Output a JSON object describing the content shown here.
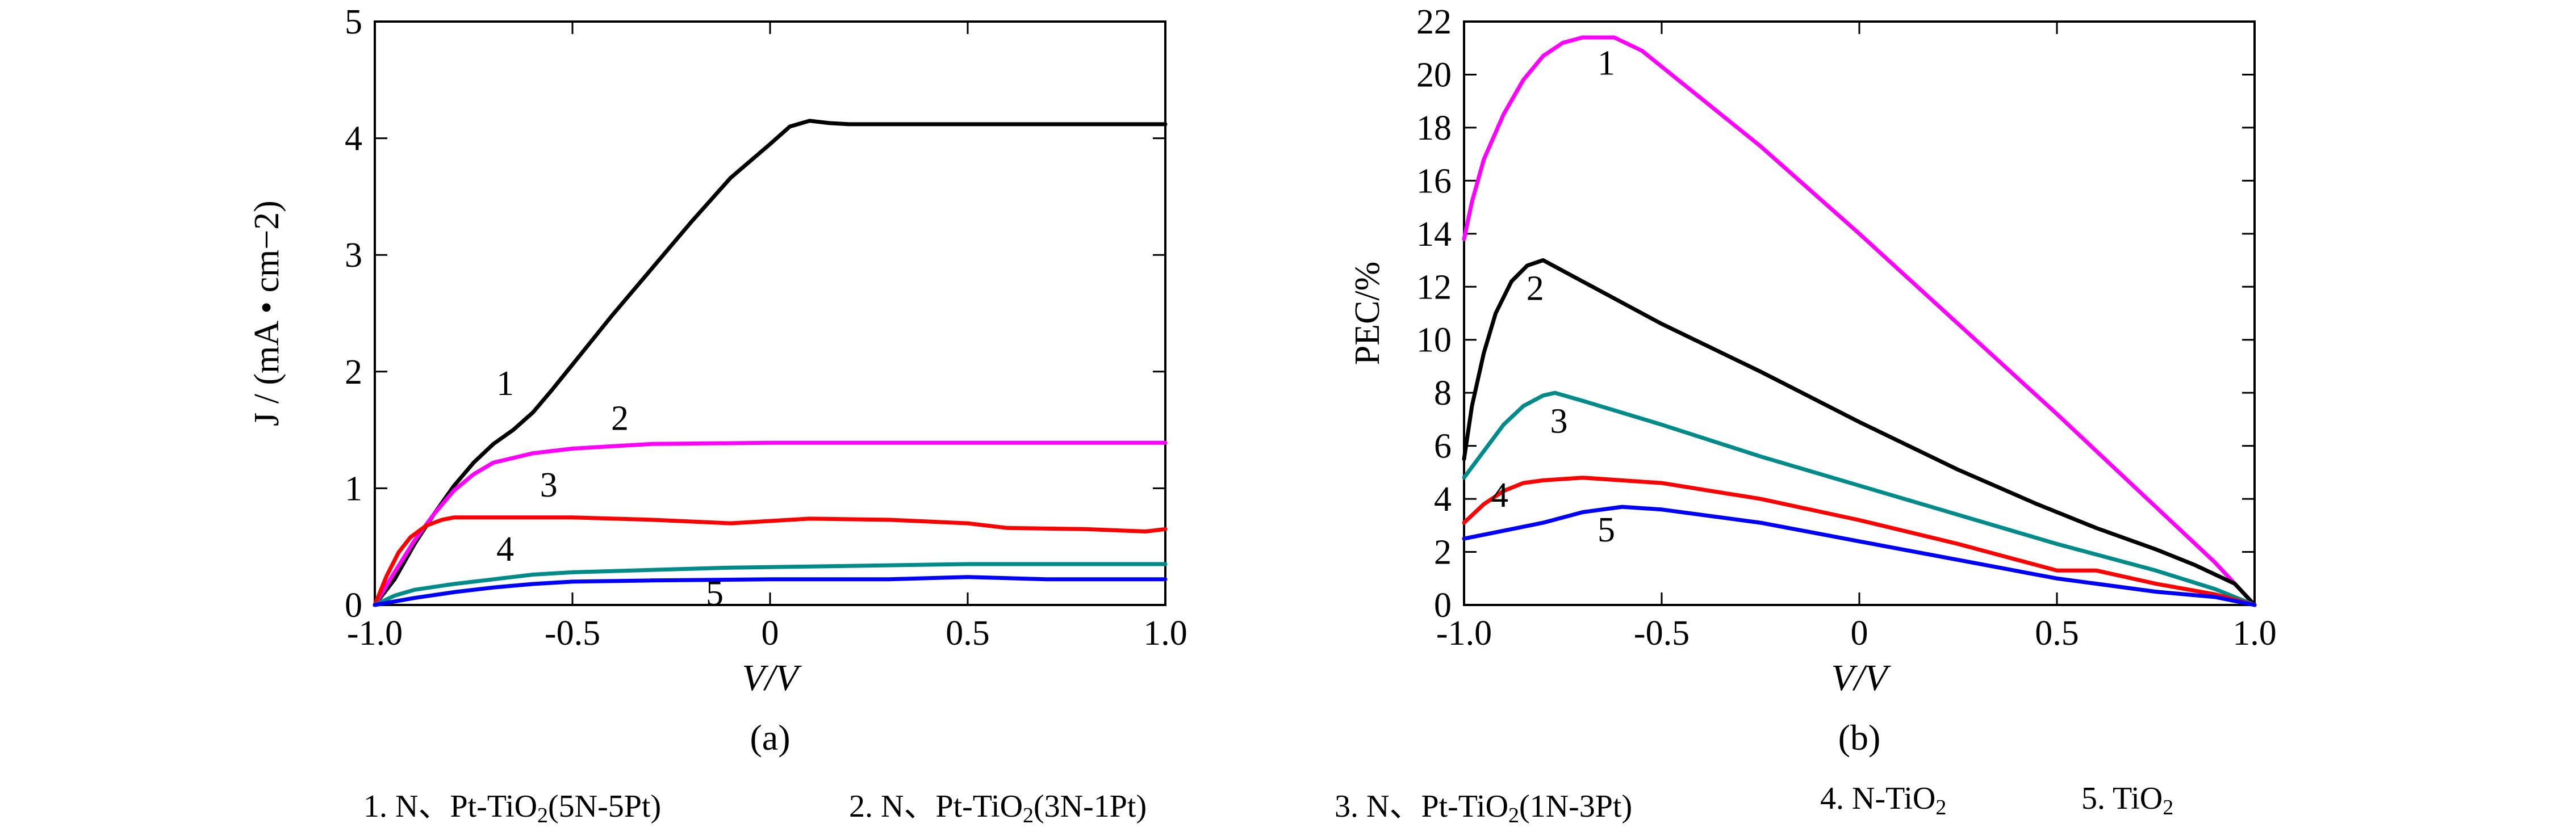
{
  "chart_data": [
    {
      "id": "a",
      "type": "line",
      "caption": "(a)",
      "xlabel": "V/V",
      "ylabel": "J / (mA • cm−2)",
      "xlim": [
        -1.0,
        1.0
      ],
      "ylim": [
        0,
        5
      ],
      "xticks": [
        -1.0,
        -0.5,
        0,
        0.5,
        1.0
      ],
      "xtick_labels": [
        "-1.0",
        "-0.5",
        "0",
        "0.5",
        "1.0"
      ],
      "yticks": [
        0,
        1,
        2,
        3,
        4,
        5
      ],
      "ytick_labels": [
        "0",
        "1",
        "2",
        "3",
        "4",
        "5"
      ],
      "series": [
        {
          "name": "1",
          "color": "#000000",
          "points": [
            [
              -1.0,
              0.0
            ],
            [
              -0.95,
              0.22
            ],
            [
              -0.9,
              0.52
            ],
            [
              -0.85,
              0.78
            ],
            [
              -0.8,
              1.02
            ],
            [
              -0.75,
              1.22
            ],
            [
              -0.7,
              1.38
            ],
            [
              -0.65,
              1.5
            ],
            [
              -0.6,
              1.65
            ],
            [
              -0.55,
              1.85
            ],
            [
              -0.5,
              2.06
            ],
            [
              -0.4,
              2.48
            ],
            [
              -0.3,
              2.88
            ],
            [
              -0.2,
              3.28
            ],
            [
              -0.1,
              3.66
            ],
            [
              0.0,
              3.95
            ],
            [
              0.05,
              4.1
            ],
            [
              0.1,
              4.15
            ],
            [
              0.15,
              4.13
            ],
            [
              0.2,
              4.12
            ],
            [
              0.5,
              4.12
            ],
            [
              1.0,
              4.12
            ]
          ]
        },
        {
          "name": "2",
          "color": "#ff00ff",
          "points": [
            [
              -1.0,
              0.0
            ],
            [
              -0.95,
              0.28
            ],
            [
              -0.9,
              0.55
            ],
            [
              -0.85,
              0.78
            ],
            [
              -0.8,
              0.98
            ],
            [
              -0.75,
              1.12
            ],
            [
              -0.7,
              1.22
            ],
            [
              -0.6,
              1.3
            ],
            [
              -0.5,
              1.34
            ],
            [
              -0.4,
              1.36
            ],
            [
              -0.3,
              1.38
            ],
            [
              0.0,
              1.39
            ],
            [
              0.5,
              1.39
            ],
            [
              1.0,
              1.39
            ]
          ]
        },
        {
          "name": "3",
          "color": "#ff0000",
          "points": [
            [
              -1.0,
              0.0
            ],
            [
              -0.97,
              0.25
            ],
            [
              -0.94,
              0.45
            ],
            [
              -0.91,
              0.58
            ],
            [
              -0.87,
              0.68
            ],
            [
              -0.83,
              0.73
            ],
            [
              -0.8,
              0.75
            ],
            [
              -0.5,
              0.75
            ],
            [
              -0.3,
              0.73
            ],
            [
              -0.1,
              0.7
            ],
            [
              0.0,
              0.72
            ],
            [
              0.1,
              0.74
            ],
            [
              0.3,
              0.73
            ],
            [
              0.5,
              0.7
            ],
            [
              0.6,
              0.66
            ],
            [
              0.8,
              0.65
            ],
            [
              0.95,
              0.63
            ],
            [
              1.0,
              0.65
            ]
          ]
        },
        {
          "name": "4",
          "color": "#008b8b",
          "points": [
            [
              -1.0,
              0.0
            ],
            [
              -0.95,
              0.08
            ],
            [
              -0.9,
              0.13
            ],
            [
              -0.8,
              0.18
            ],
            [
              -0.7,
              0.22
            ],
            [
              -0.6,
              0.26
            ],
            [
              -0.5,
              0.28
            ],
            [
              -0.3,
              0.3
            ],
            [
              -0.1,
              0.32
            ],
            [
              0.1,
              0.33
            ],
            [
              0.3,
              0.34
            ],
            [
              0.5,
              0.35
            ],
            [
              1.0,
              0.35
            ]
          ]
        },
        {
          "name": "5",
          "color": "#0000ff",
          "points": [
            [
              -1.0,
              0.0
            ],
            [
              -0.9,
              0.06
            ],
            [
              -0.8,
              0.11
            ],
            [
              -0.7,
              0.15
            ],
            [
              -0.6,
              0.18
            ],
            [
              -0.5,
              0.2
            ],
            [
              -0.3,
              0.21
            ],
            [
              0.0,
              0.22
            ],
            [
              0.3,
              0.22
            ],
            [
              0.5,
              0.24
            ],
            [
              0.7,
              0.22
            ],
            [
              1.0,
              0.22
            ]
          ]
        }
      ],
      "annotations": [
        {
          "text": "1",
          "x": -0.67,
          "y": 1.8
        },
        {
          "text": "2",
          "x": -0.38,
          "y": 1.5
        },
        {
          "text": "3",
          "x": -0.56,
          "y": 0.93
        },
        {
          "text": "4",
          "x": -0.67,
          "y": 0.38
        },
        {
          "text": "5",
          "x": -0.14,
          "y": 0.0
        }
      ]
    },
    {
      "id": "b",
      "type": "line",
      "caption": "(b)",
      "xlabel": "V/V",
      "ylabel": "PEC/%",
      "xlim": [
        -1.0,
        1.0
      ],
      "ylim": [
        0,
        22
      ],
      "xticks": [
        -1.0,
        -0.5,
        0,
        0.5,
        1.0
      ],
      "xtick_labels": [
        "-1.0",
        "-0.5",
        "0",
        "0.5",
        "1.0"
      ],
      "yticks": [
        0,
        2,
        4,
        6,
        8,
        10,
        12,
        14,
        16,
        18,
        20,
        22
      ],
      "ytick_labels": [
        "0",
        "2",
        "4",
        "6",
        "8",
        "10",
        "12",
        "14",
        "16",
        "18",
        "20",
        "22"
      ],
      "series": [
        {
          "name": "1",
          "color": "#ff00ff",
          "points": [
            [
              -1.0,
              13.8
            ],
            [
              -0.98,
              15.2
            ],
            [
              -0.95,
              16.8
            ],
            [
              -0.9,
              18.5
            ],
            [
              -0.85,
              19.8
            ],
            [
              -0.8,
              20.7
            ],
            [
              -0.75,
              21.2
            ],
            [
              -0.7,
              21.4
            ],
            [
              -0.62,
              21.4
            ],
            [
              -0.55,
              20.9
            ],
            [
              -0.5,
              20.3
            ],
            [
              -0.25,
              17.3
            ],
            [
              0.0,
              14.0
            ],
            [
              0.25,
              10.6
            ],
            [
              0.5,
              7.2
            ],
            [
              0.75,
              3.7
            ],
            [
              0.9,
              1.6
            ],
            [
              1.0,
              0.0
            ]
          ]
        },
        {
          "name": "2",
          "color": "#000000",
          "points": [
            [
              -1.0,
              5.5
            ],
            [
              -0.98,
              7.5
            ],
            [
              -0.95,
              9.5
            ],
            [
              -0.92,
              11.0
            ],
            [
              -0.88,
              12.2
            ],
            [
              -0.84,
              12.8
            ],
            [
              -0.8,
              13.0
            ],
            [
              -0.7,
              12.2
            ],
            [
              -0.5,
              10.6
            ],
            [
              -0.25,
              8.8
            ],
            [
              0.0,
              6.9
            ],
            [
              0.25,
              5.1
            ],
            [
              0.45,
              3.8
            ],
            [
              0.6,
              2.9
            ],
            [
              0.75,
              2.1
            ],
            [
              0.85,
              1.5
            ],
            [
              0.95,
              0.8
            ],
            [
              1.0,
              0.0
            ]
          ]
        },
        {
          "name": "3",
          "color": "#008b8b",
          "points": [
            [
              -1.0,
              4.8
            ],
            [
              -0.95,
              5.8
            ],
            [
              -0.9,
              6.8
            ],
            [
              -0.85,
              7.5
            ],
            [
              -0.8,
              7.9
            ],
            [
              -0.77,
              8.0
            ],
            [
              -0.7,
              7.7
            ],
            [
              -0.5,
              6.8
            ],
            [
              -0.25,
              5.6
            ],
            [
              0.0,
              4.5
            ],
            [
              0.25,
              3.4
            ],
            [
              0.5,
              2.3
            ],
            [
              0.75,
              1.3
            ],
            [
              0.9,
              0.6
            ],
            [
              1.0,
              0.0
            ]
          ]
        },
        {
          "name": "4",
          "color": "#ff0000",
          "points": [
            [
              -1.0,
              3.1
            ],
            [
              -0.95,
              3.8
            ],
            [
              -0.9,
              4.3
            ],
            [
              -0.85,
              4.6
            ],
            [
              -0.8,
              4.7
            ],
            [
              -0.7,
              4.8
            ],
            [
              -0.5,
              4.6
            ],
            [
              -0.25,
              4.0
            ],
            [
              0.0,
              3.2
            ],
            [
              0.25,
              2.3
            ],
            [
              0.5,
              1.3
            ],
            [
              0.6,
              1.3
            ],
            [
              0.75,
              0.8
            ],
            [
              0.9,
              0.4
            ],
            [
              1.0,
              0.0
            ]
          ]
        },
        {
          "name": "5",
          "color": "#0000ff",
          "points": [
            [
              -1.0,
              2.5
            ],
            [
              -0.9,
              2.8
            ],
            [
              -0.8,
              3.1
            ],
            [
              -0.7,
              3.5
            ],
            [
              -0.6,
              3.7
            ],
            [
              -0.5,
              3.6
            ],
            [
              -0.25,
              3.1
            ],
            [
              0.0,
              2.4
            ],
            [
              0.25,
              1.7
            ],
            [
              0.5,
              1.0
            ],
            [
              0.75,
              0.5
            ],
            [
              0.9,
              0.3
            ],
            [
              1.0,
              0.0
            ]
          ]
        }
      ],
      "annotations": [
        {
          "text": "1",
          "x": -0.64,
          "y": 20.0
        },
        {
          "text": "2",
          "x": -0.82,
          "y": 11.5
        },
        {
          "text": "3",
          "x": -0.76,
          "y": 6.5
        },
        {
          "text": "4",
          "x": -0.91,
          "y": 3.7
        },
        {
          "text": "5",
          "x": -0.64,
          "y": 2.4
        }
      ]
    }
  ],
  "legend": [
    {
      "num": "1. ",
      "base": "N、Pt-TiO",
      "sub": "2",
      "tail": "(5N-5Pt)"
    },
    {
      "num": "2. ",
      "base": "N、Pt-TiO",
      "sub": "2",
      "tail": "(3N-1Pt)"
    },
    {
      "num": "3. ",
      "base": "N、Pt-TiO",
      "sub": "2",
      "tail": "(1N-3Pt)"
    },
    {
      "num": "4. ",
      "base": "N-TiO",
      "sub": "2",
      "tail": ""
    },
    {
      "num": "5. ",
      "base": "TiO",
      "sub": "2",
      "tail": ""
    }
  ]
}
